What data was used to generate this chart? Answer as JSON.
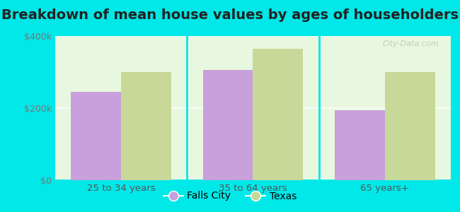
{
  "title": "Breakdown of mean house values by ages of householders",
  "categories": [
    "25 to 34 years",
    "35 to 64 years",
    "65 years+"
  ],
  "falls_city_values": [
    245000,
    305000,
    195000
  ],
  "texas_values": [
    300000,
    365000,
    300000
  ],
  "falls_city_color": "#c8a0dc",
  "texas_color": "#c8d898",
  "ylim": [
    0,
    400000
  ],
  "yticks": [
    0,
    200000,
    400000
  ],
  "ytick_labels": [
    "$0",
    "$200k",
    "$400k"
  ],
  "legend_labels": [
    "Falls City",
    "Texas"
  ],
  "outer_background": "#00e8e8",
  "bar_width": 0.38,
  "title_fontsize": 14,
  "watermark": "City-Data.com"
}
